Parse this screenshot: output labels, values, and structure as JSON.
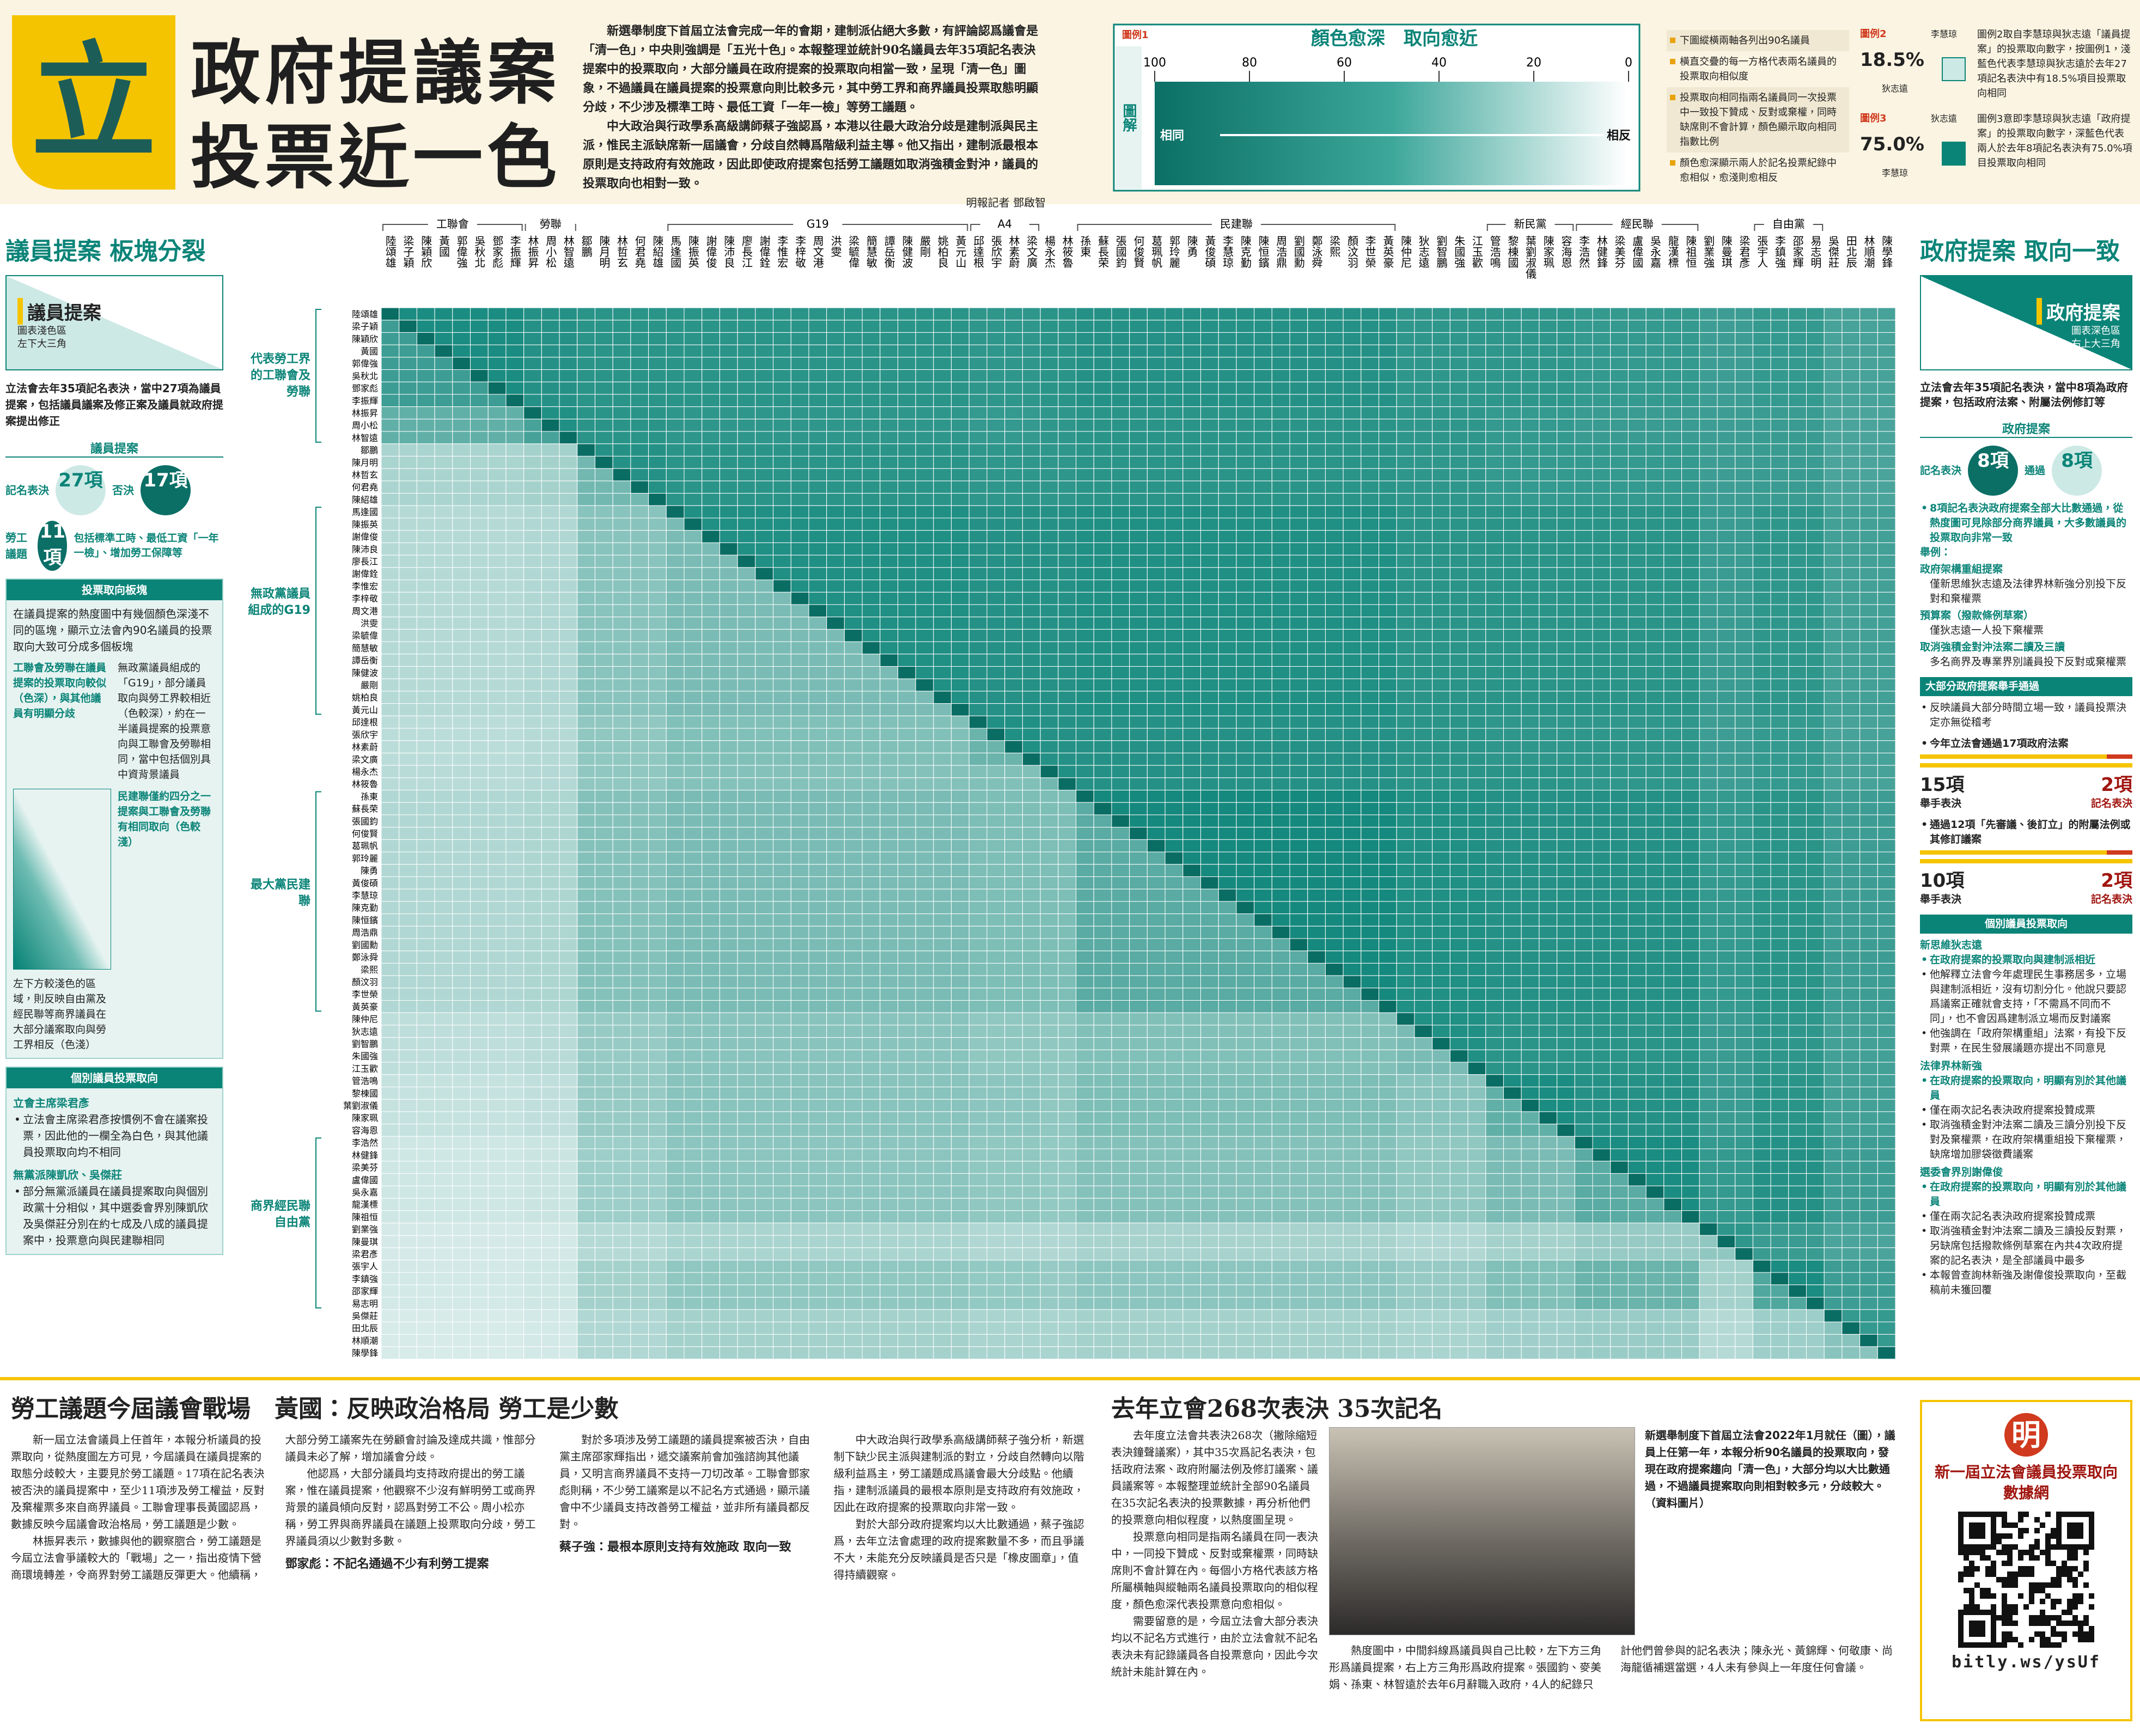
{
  "header": {
    "logo": "立",
    "title_line1": "政府提議案",
    "title_line2": "投票近一色",
    "intro": [
      "新選舉制度下首屆立法會完成一年的會期，建制派佔絕大多數，有評論認爲議會是「清一色」，中央則強調是「五光十色」。本報整理並統計90名議員去年35項記名表決提案中的投票取向，大部分議員在政府提案的投票取向相當一致，呈現「清一色」圖象，不過議員在議員提案的投票意向則比較多元，其中勞工界和商界議員投票取態明顯分歧，不少涉及標準工時、最低工資「一年一檢」等勞工議題。",
      "中大政治與行政學系高級講師蔡子強認爲，本港以往最大政治分歧是建制派與民主派，惟民主派缺席新一屆議會，分歧自然轉爲階級利益主導。他又指出，建制派最根本原則是支持政府有效施政，因此即使政府提案包括勞工議題如取消強積金對沖，議員的投票取向也相對一致。"
    ],
    "byline": "明報記者 鄧啟智"
  },
  "notes": [
    "下圖縱橫兩軸各列出90名議員",
    "橫直交疊的每一方格代表兩名議員的投票取向相似度",
    "投票取向相同指兩名議員同一次投票中一致投下贊成、反對或棄權，同時缺席則不會計算，顏色顯示取向相同指數比例",
    "顏色愈深顯示兩人於記名投票紀錄中愈相似，愈淺則愈相反"
  ],
  "examples": [
    {
      "label": "圖例2",
      "value": "18.5%",
      "name_top": "李慧琼",
      "name_side": "狄志遠",
      "text": "圖例2取自李慧琼與狄志遠「議員提案」的投票取向數字，按圖例1，淺藍色代表李慧琼與狄志遠於去年27項記名表決中有18.5%項目投票取向相同"
    },
    {
      "label": "圖例3",
      "value": "75.0%",
      "name_top": "狄志遠",
      "name_side": "李慧琼",
      "text": "圖例3意即李慧琼與狄志遠「政府提案」的投票取向數字，深藍色代表兩人於去年8項記名表決有75.0%項目投票取向相同"
    }
  ],
  "left_panel": {
    "title": "議員提案 板塊分裂",
    "key_title": "議員提案",
    "key_note": [
      "圖表淺色區",
      "左下大三角"
    ],
    "caption": "立法會去年35項記名表決，當中27項為議員提案，包括議員議案及修正案及議員就政府提案提出修正",
    "stats": {
      "heading": "議員提案",
      "label_a": "記名表決",
      "value_a": "27項",
      "label_b": "否決",
      "value_b": "17項"
    },
    "labour": {
      "label": "勞工議題",
      "value": "11項",
      "text": "包括標準工時、最低工資「一年一檢」、增加勞工保障等"
    },
    "blocs": {
      "heading": "投票取向板塊",
      "intro": "在議員提案的熱度圖中有幾個顏色深淺不同的區塊，顯示立法會內90名議員的投票取向大致可分成多個板塊",
      "points": [
        "工聯會及勞聯在議員提案的投票取向較似（色深），與其他議員有明顯分歧",
        "無政黨議員組成的「G19」，部分議員取向與勞工界較相近（色較深），約在一半議員提案的投票意向與工聯會及勞聯相同，當中包括個別具中資背景議員",
        "左下方較淺色的區域，則反映自由黨及經民聯等商界議員在大部分議案取向與勞工界相反（色淺）",
        "民建聯僅約四分之一提案與工聯會及勞聯有相同取向（色較淺）"
      ]
    },
    "members": {
      "heading": "個別議員投票取向",
      "items": [
        {
          "name": "立會主席梁君彥",
          "text": "立法會主席梁君彥按慣例不會在議案投票，因此他的一欄全為白色，與其他議員投票取向均不相同"
        },
        {
          "name": "無黨派陳凱欣、吳傑莊",
          "text": "部分無黨派議員在議員提案取向與個別政黨十分相似，其中選委會界別陳凱欣及吳傑莊分別在約七成及八成的議員提案中，投票意向與民建聯相同"
        }
      ]
    }
  },
  "right_panel": {
    "title": "政府提案 取向一致",
    "key_title": "政府提案",
    "key_note": [
      "圖表深色區",
      "右上大三角"
    ],
    "caption": "立法會去年35項記名表決，當中8項為政府提案，包括政府法案、附屬法例修訂等",
    "stats": {
      "heading": "政府提案",
      "label_a": "記名表決",
      "value_a": "8項",
      "label_b": "通過",
      "value_b": "8項"
    },
    "summary": "8項記名表決政府提案全部大比數通過，從熱度圖可見除部分商界議員，大多數議員的投票取向非常一致",
    "examples_heading": "舉例：",
    "examples": [
      {
        "name": "政府架構重組提案",
        "text": "僅新思維狄志遠及法律界林新強分別投下反對和棄權票"
      },
      {
        "name": "預算案（撥款條例草案）",
        "text": "僅狄志遠一人投下棄權票"
      },
      {
        "name": "取消強積金對沖法案二讀及三讀",
        "text": "多名商界及專業界別議員投下反對或棄權票"
      }
    ],
    "show_hands": {
      "heading": "大部分政府提案舉手通過",
      "text": "反映議員大部分時間立場一致，議員投票決定亦無從稽考",
      "blocks": [
        {
          "title": "今年立法會通過17項政府法案",
          "a_value": "15項",
          "a_label": "舉手表決",
          "b_value": "2項",
          "b_label": "記名表決"
        },
        {
          "title": "通過12項「先審議、後訂立」的附屬法例或其修訂議案",
          "a_value": "10項",
          "a_label": "舉手表決",
          "b_value": "2項",
          "b_label": "記名表決"
        }
      ]
    },
    "members": {
      "heading": "個別議員投票取向",
      "items": [
        {
          "name": "新思維狄志遠",
          "points": [
            "在政府提案的投票取向與建制派相近",
            "他解釋立法會今年處理民生事務居多，立場與建制派相近，沒有切割分化。他說只要認爲議案正確就會支持，「不需爲不同而不同」，也不會因爲建制派立場而反對議案",
            "他強調在「政府架構重組」法案，有投下反對票，在民生發展議題亦提出不同意見"
          ]
        },
        {
          "name": "法律界林新強",
          "points": [
            "在政府提案的投票取向，明顯有別於其他議員",
            "僅在兩次記名表決政府提案投贊成票",
            "取消強積金對沖法案二讀及三讀分別投下反對及棄權票，在政府架構重組投下棄權票，缺席增加膠袋徵費議案"
          ]
        },
        {
          "name": "選委會界別謝偉俊",
          "points": [
            "在政府提案的投票取向，明顯有別於其他議員",
            "僅在兩次記名表決政府提案投贊成票",
            "取消強積金對沖法案二讀及三讀投反對票，另缺席包括撥款條例草案在內共4次政府提案的記名表決，是全部議員中最多",
            "本報曾查詢林新強及謝偉俊投票取向，至截稿前未獲回覆"
          ]
        }
      ]
    }
  },
  "chart_data": {
    "type": "heatmap",
    "color": "#0b8478",
    "groups": [
      {
        "name": "工聯會",
        "members": [
          "陸頌雄",
          "梁子穎",
          "陳穎欣",
          "黃國",
          "郭偉強",
          "吳秋北",
          "鄧家彪",
          "李振輝"
        ]
      },
      {
        "name": "勞聯",
        "members": [
          "林振昇",
          "周小松",
          "林智遠"
        ]
      },
      {
        "name": null,
        "members": [
          "鄒鵬",
          "陳月明",
          "林哲玄",
          "何君堯",
          "陳紹雄"
        ]
      },
      {
        "name": "G19",
        "members": [
          "馬逢國",
          "陳振英",
          "謝偉俊",
          "陳沛良",
          "廖長江",
          "謝偉銓",
          "李惟宏",
          "李梓敬",
          "周文港",
          "洪雯",
          "梁毓偉",
          "簡慧敏",
          "譚岳衡",
          "陳健波",
          "嚴剛",
          "姚柏良",
          "黃元山"
        ]
      },
      {
        "name": "A4",
        "members": [
          "邱達根",
          "張欣宇",
          "林素蔚",
          "梁文廣"
        ]
      },
      {
        "name": null,
        "members": [
          "楊永杰",
          "林筱魯"
        ]
      },
      {
        "name": "民建聯",
        "members": [
          "孫東",
          "蘇長荣",
          "張國鈞",
          "何俊賢",
          "葛珮帆",
          "郭玲麗",
          "陳勇",
          "黃俊碩",
          "李慧琼",
          "陳克勤",
          "陳恒鑌",
          "周浩鼎",
          "劉國勳",
          "鄭泳舜",
          "梁熙",
          "顏汶羽",
          "李世榮",
          "黃英豪"
        ]
      },
      {
        "name": null,
        "members": [
          "陳仲尼",
          "狄志遠",
          "劉智鵬",
          "朱國強",
          "江玉歡"
        ]
      },
      {
        "name": "新民黨",
        "members": [
          "管浩鳴",
          "黎棟國",
          "葉劉淑儀",
          "陳家珮",
          "容海恩"
        ]
      },
      {
        "name": "經民聯",
        "members": [
          "李浩然",
          "林健鋒",
          "梁美芬",
          "盧偉國",
          "吳永嘉",
          "龍漢標",
          "陳祖恒"
        ]
      },
      {
        "name": null,
        "members": [
          "劉業強",
          "陳曼琪",
          "梁君彥"
        ]
      },
      {
        "name": "自由黨",
        "members": [
          "張宇人",
          "李鎮強",
          "邵家輝",
          "易志明"
        ]
      },
      {
        "name": null,
        "members": [
          "吳傑莊",
          "田北辰",
          "林順潮",
          "陳學鋒"
        ]
      }
    ],
    "government_bills": [
      [
        97,
        95,
        94,
        94,
        93,
        94,
        95,
        93,
        93,
        92,
        90,
        92,
        88
      ],
      [
        96,
        94,
        93,
        92,
        93,
        94,
        93,
        92,
        91,
        90,
        91,
        87
      ],
      [
        95,
        94,
        93,
        93,
        94,
        93,
        92,
        92,
        90,
        91,
        87
      ],
      [
        96,
        95,
        95,
        96,
        94,
        94,
        94,
        91,
        93,
        89
      ],
      [
        96,
        95,
        95,
        94,
        93,
        93,
        90,
        92,
        88
      ],
      [
        96,
        95,
        94,
        94,
        93,
        90,
        92,
        88
      ],
      [
        98,
        96,
        95,
        95,
        92,
        94,
        90
      ],
      [
        96,
        94,
        94,
        91,
        93,
        89
      ],
      [
        97,
        95,
        91,
        94,
        89
      ],
      [
        97,
        92,
        95,
        90
      ],
      [
        93,
        91,
        87
      ],
      [
        97,
        90
      ],
      [
        92
      ]
    ],
    "members_bills": [
      [
        90
      ],
      [
        82,
        88
      ],
      [
        62,
        64,
        78
      ],
      [
        58,
        60,
        72,
        76
      ],
      [
        56,
        58,
        70,
        74,
        80
      ],
      [
        57,
        59,
        70,
        73,
        74,
        78
      ],
      [
        60,
        61,
        73,
        76,
        75,
        75,
        84
      ],
      [
        55,
        57,
        68,
        72,
        70,
        70,
        74,
        76
      ],
      [
        52,
        54,
        68,
        72,
        71,
        70,
        75,
        72,
        82
      ],
      [
        48,
        50,
        66,
        71,
        70,
        69,
        73,
        70,
        76,
        84
      ],
      [
        45,
        46,
        58,
        62,
        60,
        60,
        63,
        60,
        64,
        68,
        70
      ],
      [
        46,
        48,
        64,
        70,
        69,
        68,
        71,
        68,
        74,
        80,
        64,
        86
      ],
      [
        44,
        46,
        60,
        64,
        62,
        62,
        64,
        62,
        65,
        67,
        58,
        66,
        72
      ]
    ],
    "side_labels": [
      "代表勞工界的工聯會及勞聯",
      "無政黨議員組成的G19",
      "最大黨民建聯",
      "商界經民聯自由黨"
    ],
    "scale": {
      "label": "圖例1",
      "side": "圖解",
      "title": "顏色愈深　取向愈近",
      "lim": [
        100,
        0
      ],
      "ticks": [
        100,
        80,
        60,
        40,
        20,
        0
      ],
      "low_label": "相同",
      "high_label": "相反"
    }
  },
  "article1": {
    "headline": "勞工議題今屆議會戰場　黃國：反映政治格局 勞工是少數",
    "paragraphs": [
      "新一屆立法會議員上任首年，本報分析議員的投票取向，從熱度圖左方可見，今屆議員在議員提案的取態分歧較大，主要見於勞工議題。17項在記名表決被否決的議員提案中，至少11項涉及勞工權益，反對及棄權票多來自商界議員。工聯會理事長黃國認爲，數據反映今屆議會政治格局，勞工議題是少數。",
      "林振昇表示，數據與他的觀察脗合，勞工議題是今屆立法會爭議較大的「戰場」之一，指出疫情下營商環境轉差，令商界對勞工議題反彈更大。他續稱，大部分勞工議案先在勞顧會討論及達成共識，惟部分議員未必了解，增加議會分歧。",
      "他認爲，大部分議員均支持政府提出的勞工議案，惟在議員提案，他觀察不少沒有鮮明勞工或商界背景的議員傾向反對，認爲對勞工不公。周小松亦稱，勞工界與商界議員在議題上投票取向分歧，勞工界議員須以少數對多數。"
    ],
    "subhead1": "鄧家彪：不記名通過不少有利勞工提案",
    "paragraphs2": [
      "對於多項涉及勞工議題的議員提案被否決，自由黨主席邵家輝指出，遞交議案前會加強諮詢其他議員，又明言商界議員不支持一刀切改革。工聯會鄧家彪則稱，不少勞工議案是以不記名方式通過，顯示議會中不少議員支持改善勞工權益，並非所有議員都反對。"
    ],
    "subhead2": "蔡子強：最根本原則支持有效施政 取向一致",
    "paragraphs3": [
      "中大政治與行政學系高級講師蔡子強分析，新選制下缺少民主派與建制派的對立，分歧自然轉向以階級利益爲主，勞工議題成爲議會最大分歧點。他續指，建制派議員的最根本原則是支持政府有效施政，因此在政府提案的投票取向非常一致。",
      "對於大部分政府提案均以大比數通過，蔡子強認爲，去年立法會處理的政府提案數量不多，而且爭議不大，未能充分反映議員是否只是「橡皮圖章」，值得持續觀察。"
    ]
  },
  "article2": {
    "headline": "去年立會268次表決 35次記名",
    "paragraphs": [
      "去年度立法會共表決268次（撇除縮短表決鐘聲議案），其中35次爲記名表決，包括政府法案、政府附屬法例及修訂議案、議員議案等。本報整理並統計全部90名議員在35次記名表決的投票數據，再分析他們的投票意向相似程度，以熱度圖呈現。",
      "投票意向相同是指兩名議員在同一表決中，一同投下贊成、反對或棄權票，同時缺席則不會計算在內。每個小方格代表該方格所屬橫軸與縱軸兩名議員投票取向的相似程度，顏色愈深代表投票意向愈相似。",
      "需要留意的是，今屆立法會大部分表決均以不記名方式進行，由於立法會就不記名表決未有記錄議員各自投票意向，因此今次統計未能計算在內。"
    ],
    "paragraphs_bottom": [
      "熱度圖中，中間斜線爲議員與自己比較，左下方三角形爲議員提案，右上方三角形爲政府提案。張國鈞、麥美娟、孫東、林智遠於去年6月辭職入政府，4人的紀錄只計他們曾參與的記名表決；陳永光、黃錦輝、何敬康、尚海龍循補選當選，4人未有參與上一年度任何會議。"
    ],
    "photo_caption": "新選舉制度下首屆立法會2022年1月就任（圖），議員上任第一年，本報分析90名議員的投票取向，發現在政府提案趨向「清一色」，大部分均以大比數通過，不過議員提案取向則相對較多元，分歧較大。（資料圖片）"
  },
  "promo": {
    "title": "新一屆立法會議員投票取向數據網",
    "logo": "明",
    "url": "bitly.ws/ysUf"
  }
}
